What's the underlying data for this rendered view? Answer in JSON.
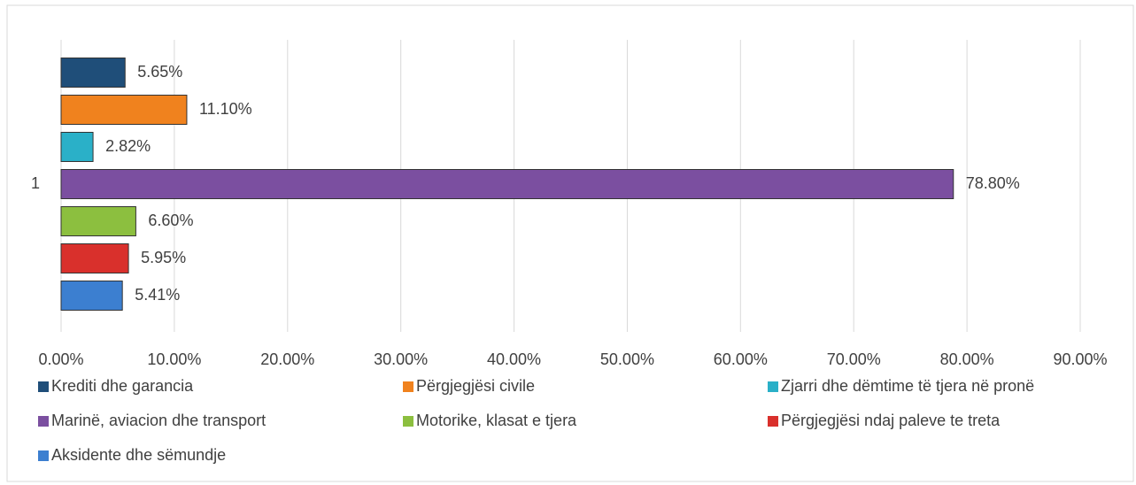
{
  "chart_data": {
    "type": "bar",
    "orientation": "horizontal",
    "categories": [
      "1"
    ],
    "series": [
      {
        "name": "Krediti dhe garancia",
        "color": "#1f4e79",
        "values": [
          5.65
        ],
        "value_labels": [
          "5.65%"
        ]
      },
      {
        "name": "Përgjegjësi civile",
        "color": "#f0821e",
        "values": [
          11.1
        ],
        "value_labels": [
          "11.10%"
        ]
      },
      {
        "name": "Zjarri dhe dëmtime të tjera në pronë",
        "color": "#2ab0c8",
        "values": [
          2.82
        ],
        "value_labels": [
          "2.82%"
        ]
      },
      {
        "name": "Marinë, aviacion dhe transport",
        "color": "#7b4fa0",
        "values": [
          78.8
        ],
        "value_labels": [
          "78.80%"
        ]
      },
      {
        "name": "Motorike, klasat e tjera",
        "color": "#8cbf3f",
        "values": [
          6.6
        ],
        "value_labels": [
          "6.60%"
        ]
      },
      {
        "name": "Përgjegjësi ndaj paleve te treta",
        "color": "#d9302c",
        "values": [
          5.95
        ],
        "value_labels": [
          "5.95%"
        ]
      },
      {
        "name": "Aksidente dhe sëmundje",
        "color": "#3c7fd0",
        "values": [
          5.41
        ],
        "value_labels": [
          "5.41%"
        ]
      }
    ],
    "xlim": [
      0,
      90
    ],
    "xticks": [
      {
        "value": 0,
        "label": "0.00%"
      },
      {
        "value": 10,
        "label": "10.00%"
      },
      {
        "value": 20,
        "label": "20.00%"
      },
      {
        "value": 30,
        "label": "30.00%"
      },
      {
        "value": 40,
        "label": "40.00%"
      },
      {
        "value": 50,
        "label": "50.00%"
      },
      {
        "value": 60,
        "label": "60.00%"
      },
      {
        "value": 70,
        "label": "70.00%"
      },
      {
        "value": 80,
        "label": "80.00%"
      },
      {
        "value": 90,
        "label": "90.00%"
      }
    ],
    "grid": true,
    "legend": "bottom"
  }
}
